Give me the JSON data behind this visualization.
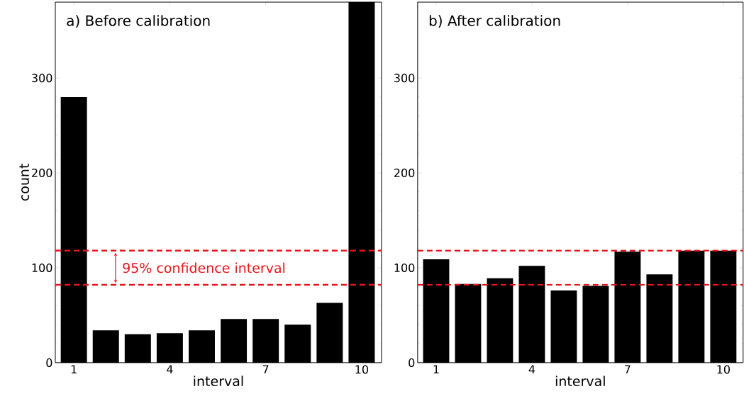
{
  "chart_data": [
    {
      "type": "bar",
      "title": "a) Before calibration",
      "xlabel": "interval",
      "ylabel": "count",
      "color": "#000000",
      "x": [
        1,
        2,
        3,
        4,
        5,
        6,
        7,
        8,
        9,
        10
      ],
      "values": [
        280,
        34,
        30,
        31,
        34,
        46,
        46,
        40,
        63,
        380
      ],
      "xlim": [
        0.42,
        10.62
      ],
      "ylim": [
        0,
        380
      ],
      "xticks": [
        1,
        4,
        7,
        10
      ],
      "yticks": [
        0,
        100,
        200,
        300
      ],
      "ref_lines": [
        {
          "axis": "y",
          "value": 118,
          "color": "#e8141c",
          "line_style": "dashed"
        },
        {
          "axis": "y",
          "value": 82,
          "color": "#e8141c",
          "line_style": "dashed"
        }
      ],
      "annotations": [
        "95% confidence interval"
      ]
    },
    {
      "type": "bar",
      "title": "b) After calibration",
      "xlabel": "interval",
      "color": "#000000",
      "x": [
        1,
        2,
        3,
        4,
        5,
        6,
        7,
        8,
        9,
        10
      ],
      "values": [
        109,
        83,
        89,
        102,
        76,
        81,
        117,
        93,
        118,
        118
      ],
      "xlim": [
        0.42,
        10.62
      ],
      "ylim": [
        0,
        380
      ],
      "xticks": [
        1,
        4,
        7,
        10
      ],
      "yticks": [
        0,
        100,
        200,
        300
      ],
      "ref_lines": [
        {
          "axis": "y",
          "value": 118,
          "color": "#e8141c",
          "line_style": "dashed"
        },
        {
          "axis": "y",
          "value": 82,
          "color": "#e8141c",
          "line_style": "dashed"
        }
      ]
    }
  ]
}
